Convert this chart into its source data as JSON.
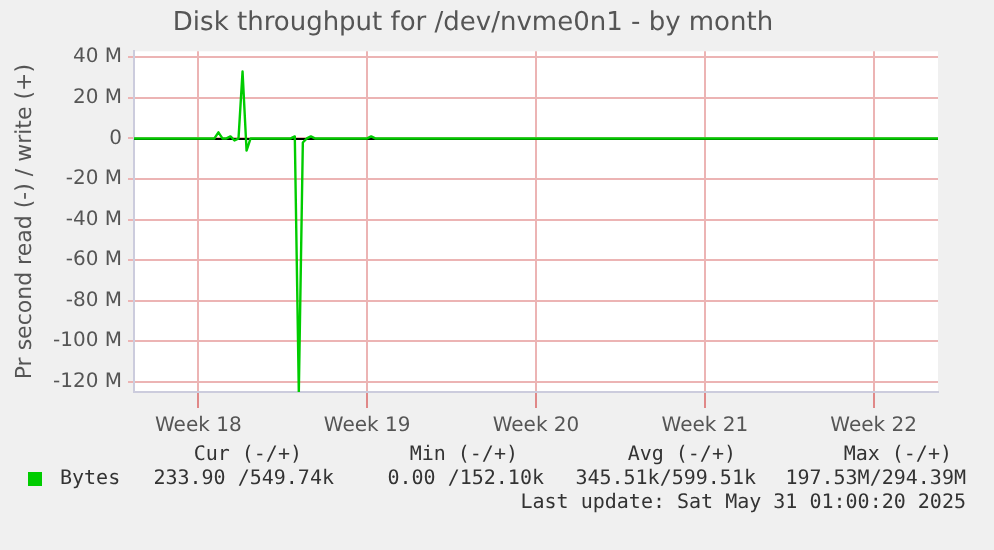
{
  "chart_data": {
    "type": "line",
    "title": "Disk throughput for /dev/nvme0n1 - by month",
    "ylabel": "Pr second read (-) / write (+)",
    "categories": [
      null,
      null,
      null,
      null,
      null,
      null,
      null,
      null,
      null,
      null,
      null,
      null,
      null,
      null,
      null,
      null,
      "Week 18",
      null,
      null,
      null,
      null,
      null,
      null,
      null,
      null,
      null,
      null,
      null,
      null,
      null,
      null,
      null,
      null,
      null,
      null,
      null,
      null,
      null,
      null,
      null,
      null,
      null,
      null,
      null,
      null,
      null,
      null,
      null,
      null,
      null,
      null,
      null,
      null,
      null,
      null,
      null,
      null,
      null,
      "Week 19",
      null,
      null,
      null,
      null,
      null,
      null,
      null,
      null,
      null,
      null,
      null,
      null,
      null,
      null,
      null,
      null,
      null,
      null,
      null,
      null,
      null,
      null,
      null,
      null,
      null,
      null,
      null,
      null,
      null,
      null,
      null,
      null,
      null,
      null,
      null,
      null,
      null,
      null,
      null,
      null,
      null,
      "Week 20",
      null,
      null,
      null,
      null,
      null,
      null,
      null,
      null,
      null,
      null,
      null,
      null,
      null,
      null,
      null,
      null,
      null,
      null,
      null,
      null,
      null,
      null,
      null,
      null,
      null,
      null,
      null,
      null,
      null,
      null,
      null,
      null,
      null,
      null,
      null,
      null,
      null,
      null,
      null,
      null,
      null,
      "Week 21",
      null,
      null,
      null,
      null,
      null,
      null,
      null,
      null,
      null,
      null,
      null,
      null,
      null,
      null,
      null,
      null,
      null,
      null,
      null,
      null,
      null,
      null,
      null,
      null,
      null,
      null,
      null,
      null,
      null,
      null,
      null,
      null,
      null,
      null,
      null,
      null,
      null,
      null,
      null,
      null,
      null,
      "Week 22",
      null,
      null,
      null,
      null,
      null,
      null,
      null,
      null,
      null,
      null,
      null,
      null,
      null,
      null,
      null,
      null
    ],
    "ylim": [
      -125,
      43
    ],
    "yticks": [
      {
        "value": 40,
        "label": "40 M"
      },
      {
        "value": 20,
        "label": "20 M"
      },
      0,
      {
        "value": -20,
        "label": "-20 M"
      },
      {
        "value": -40,
        "label": "-40 M"
      },
      {
        "value": -60,
        "label": "-60 M"
      },
      {
        "value": -80,
        "label": "-80 M"
      },
      {
        "value": -100,
        "label": "-100 M"
      },
      {
        "value": -120,
        "label": "-120 M"
      }
    ],
    "grid": true,
    "legend": "bottom left",
    "marker": "none",
    "series": [
      {
        "name": "Bytes",
        "color": "#00cc00",
        "values": [
          0,
          0,
          0,
          0,
          0,
          0,
          0,
          0,
          0,
          0,
          0,
          0,
          0,
          0,
          0,
          0,
          0,
          0,
          0,
          0,
          0,
          3,
          0,
          0,
          1,
          -1,
          0,
          33,
          -6,
          0,
          0,
          0,
          0,
          0,
          0,
          0,
          0,
          0,
          0,
          0,
          1,
          -125,
          -2,
          0,
          1,
          0,
          0,
          0,
          0,
          0,
          0,
          0,
          0,
          0,
          0,
          0,
          0,
          0,
          0,
          1,
          0,
          0,
          0,
          0,
          0,
          0,
          0,
          0,
          0,
          0,
          0,
          0,
          0,
          0,
          0,
          0,
          0,
          0,
          0,
          0,
          0,
          0,
          0,
          0,
          0,
          0,
          0,
          0,
          0,
          0,
          0,
          0,
          0,
          0,
          0,
          0,
          0,
          0,
          0,
          0,
          0,
          0,
          0,
          0,
          0,
          0,
          0,
          0,
          0,
          0,
          0,
          0,
          0,
          0,
          0,
          0,
          0,
          0,
          0,
          0,
          0,
          0,
          0,
          0,
          0,
          0,
          0,
          0,
          0,
          0,
          0,
          0,
          0,
          0,
          0,
          0,
          0,
          0,
          0,
          0,
          0,
          0,
          0,
          0,
          0,
          0,
          0,
          0,
          0,
          0,
          0,
          0,
          0,
          0,
          0,
          0,
          0,
          0,
          0,
          0,
          0,
          0,
          0,
          0,
          0,
          0,
          0,
          0,
          0,
          0,
          0,
          0,
          0,
          0,
          0,
          0,
          0,
          0,
          0,
          0,
          0,
          0,
          0,
          0,
          0,
          0,
          0,
          0,
          0,
          0,
          0,
          0,
          0,
          0,
          0,
          0,
          0,
          0,
          0,
          0,
          0
        ]
      }
    ],
    "annotations": [
      "Cur (-/+)",
      "Min (-/+)",
      "Avg (-/+)",
      "Max (-/+)",
      "233.90 /549.74k",
      "0.00 /152.10k",
      "345.51k/599.51k",
      "197.53M/294.39M",
      "Last update: Sat May 31 01:00:20 2025"
    ]
  }
}
